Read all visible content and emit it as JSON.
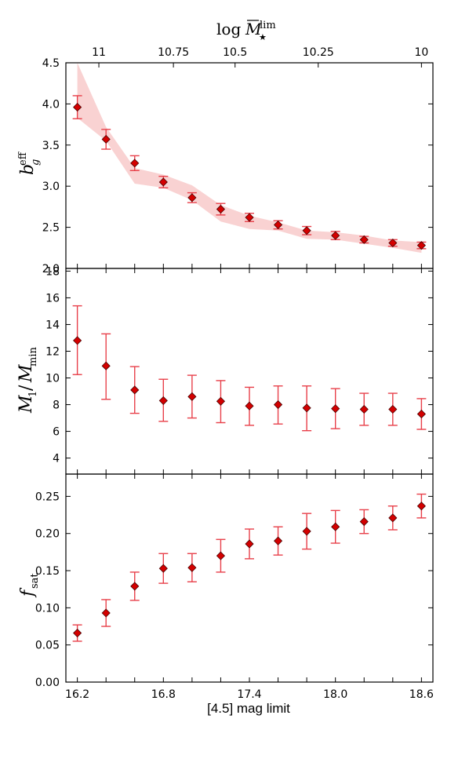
{
  "chart_data": [
    {
      "type": "scatter",
      "panel": "top",
      "ylabel": "b_g^eff",
      "ylim": [
        2.0,
        4.5
      ],
      "yticks": [
        "2.0",
        "2.5",
        "3.0",
        "3.5",
        "4.0",
        "4.5"
      ],
      "top_axis": {
        "label": "log M̄★^lim",
        "ticks": [
          {
            "x": 16.35,
            "label": "11"
          },
          {
            "x": 16.87,
            "label": "10.75"
          },
          {
            "x": 17.3,
            "label": "10.5"
          },
          {
            "x": 17.88,
            "label": "10.25"
          },
          {
            "x": 18.6,
            "label": "10"
          }
        ]
      },
      "series": [
        {
          "marker": "diamond",
          "x": [
            16.2,
            16.4,
            16.6,
            16.8,
            17.0,
            17.2,
            17.4,
            17.6,
            17.8,
            18.0,
            18.2,
            18.4,
            18.6
          ],
          "y": [
            3.96,
            3.57,
            3.28,
            3.05,
            2.86,
            2.72,
            2.62,
            2.53,
            2.46,
            2.4,
            2.35,
            2.31,
            2.28
          ],
          "yerr": [
            0.14,
            0.12,
            0.09,
            0.07,
            0.06,
            0.07,
            0.05,
            0.05,
            0.05,
            0.05,
            0.04,
            0.04,
            0.04
          ]
        }
      ],
      "band": {
        "x": [
          16.2,
          16.4,
          16.6,
          16.8,
          17.0,
          17.2,
          17.4,
          17.6,
          17.8,
          18.0,
          18.2,
          18.4,
          18.6
        ],
        "upper": [
          4.6,
          3.72,
          3.22,
          3.14,
          3.01,
          2.77,
          2.64,
          2.56,
          2.46,
          2.44,
          2.4,
          2.34,
          2.32
        ],
        "lower": [
          3.83,
          3.55,
          3.03,
          2.98,
          2.83,
          2.57,
          2.48,
          2.46,
          2.36,
          2.35,
          2.3,
          2.25,
          2.19
        ]
      }
    },
    {
      "type": "scatter",
      "panel": "middle",
      "ylabel": "M_1/M_min",
      "ylim": [
        2.8,
        18.2
      ],
      "yticks": [
        "4",
        "6",
        "8",
        "10",
        "12",
        "14",
        "16",
        "18"
      ],
      "series": [
        {
          "marker": "diamond",
          "x": [
            16.2,
            16.4,
            16.6,
            16.8,
            17.0,
            17.2,
            17.4,
            17.6,
            17.8,
            18.0,
            18.2,
            18.4,
            18.6
          ],
          "y": [
            12.8,
            10.9,
            9.1,
            8.3,
            8.6,
            8.25,
            7.9,
            8.0,
            7.75,
            7.7,
            7.65,
            7.65,
            7.3
          ],
          "ylow": [
            10.25,
            8.4,
            7.35,
            6.75,
            7.0,
            6.65,
            6.45,
            6.55,
            6.05,
            6.2,
            6.45,
            6.45,
            6.15
          ],
          "yhigh": [
            15.4,
            13.3,
            10.85,
            9.9,
            10.2,
            9.8,
            9.3,
            9.4,
            9.4,
            9.2,
            8.85,
            8.85,
            8.45
          ]
        }
      ]
    },
    {
      "type": "scatter",
      "panel": "bottom",
      "ylabel": "f_sat",
      "xlabel": "[4.5] mag limit",
      "ylim": [
        0.0,
        0.28
      ],
      "xlim": [
        16.12,
        18.68
      ],
      "xticks": [
        "16.2",
        "16.8",
        "17.4",
        "18.0",
        "18.6"
      ],
      "yticks": [
        "0.00",
        "0.05",
        "0.10",
        "0.15",
        "0.20",
        "0.25"
      ],
      "series": [
        {
          "marker": "diamond",
          "x": [
            16.2,
            16.4,
            16.6,
            16.8,
            17.0,
            17.2,
            17.4,
            17.6,
            17.8,
            18.0,
            18.2,
            18.4,
            18.6
          ],
          "y": [
            0.066,
            0.093,
            0.129,
            0.153,
            0.154,
            0.17,
            0.186,
            0.19,
            0.203,
            0.209,
            0.216,
            0.221,
            0.237
          ],
          "yerr": [
            0.011,
            0.018,
            0.019,
            0.02,
            0.019,
            0.022,
            0.02,
            0.019,
            0.024,
            0.022,
            0.016,
            0.016,
            0.016
          ]
        }
      ]
    }
  ],
  "colors": {
    "marker": "#d40000",
    "errorbar": "#e8404a",
    "band": "#f9d2d2",
    "axes": "#000000"
  }
}
